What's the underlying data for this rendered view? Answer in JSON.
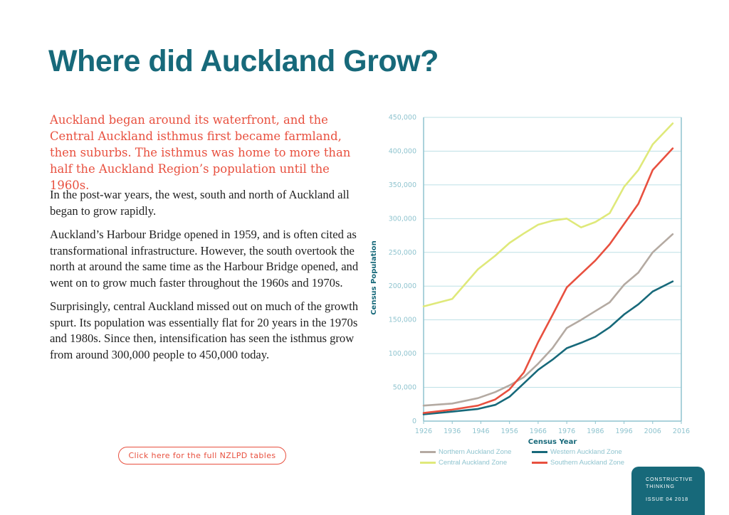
{
  "page": {
    "title": "Where did Auckland Grow?",
    "intro": "Auckland began around its waterfront, and the Central Auckland isthmus first became farmland, then suburbs. The isthmus was home to more than half the Auckland Region’s population until the 1960s.",
    "paragraphs": [
      "In the post-war years, the west, south and north of Auckland all began to grow rapidly.",
      "Auckland’s Harbour Bridge opened in 1959, and is often cited as transformational infrastructure. However, the south overtook the north at around the same time as the Harbour Bridge opened, and went on to grow much faster throughout the 1960s and 1970s.",
      "Surprisingly, central Auckland missed out on much of the growth spurt. Its population was essentially flat for 20 years in the 1970s and 1980s. Since then, intensification has seen the isthmus grow from around 300,000 people to 450,000 today."
    ],
    "cta_label": "Click here for the full NZLPD tables",
    "badge": {
      "line1": "CONSTRUCTIVE",
      "line2": "THINKING",
      "issue": "ISSUE 04 2018"
    }
  },
  "colors": {
    "title": "#17697a",
    "accent": "#e8503f",
    "axis": "#8fc4cf",
    "grid": "#bde0e6"
  },
  "chart_data": {
    "type": "line",
    "xlabel": "Census Year",
    "ylabel": "Census Population",
    "xlim": [
      1926,
      2016
    ],
    "ylim": [
      0,
      450000
    ],
    "xticks": [
      1926,
      1936,
      1946,
      1956,
      1966,
      1976,
      1986,
      1996,
      2006,
      2016
    ],
    "yticks": [
      0,
      50000,
      100000,
      150000,
      200000,
      250000,
      300000,
      350000,
      400000,
      450000
    ],
    "ytick_labels": [
      "0",
      "50,000",
      "100,000",
      "150,000",
      "200,000",
      "250,000",
      "300,000",
      "350,000",
      "400,000",
      "450,000"
    ],
    "grid": true,
    "legend_position": "bottom",
    "series": [
      {
        "name": "Northern Auckland Zone",
        "color": "#b4aaa2",
        "points": [
          [
            1926,
            23000
          ],
          [
            1936,
            26000
          ],
          [
            1945,
            34000
          ],
          [
            1951,
            43000
          ],
          [
            1956,
            53000
          ],
          [
            1961,
            65000
          ],
          [
            1966,
            85000
          ],
          [
            1971,
            108000
          ],
          [
            1976,
            138000
          ],
          [
            1981,
            150000
          ],
          [
            1986,
            163000
          ],
          [
            1991,
            176000
          ],
          [
            1996,
            202000
          ],
          [
            2001,
            220000
          ],
          [
            2006,
            250000
          ],
          [
            2013,
            277000
          ]
        ]
      },
      {
        "name": "Western Auckland Zone",
        "color": "#17697a",
        "points": [
          [
            1926,
            10000
          ],
          [
            1936,
            14000
          ],
          [
            1945,
            18000
          ],
          [
            1951,
            24000
          ],
          [
            1956,
            36000
          ],
          [
            1961,
            56000
          ],
          [
            1966,
            76000
          ],
          [
            1971,
            91000
          ],
          [
            1976,
            108000
          ],
          [
            1981,
            116000
          ],
          [
            1986,
            125000
          ],
          [
            1991,
            139000
          ],
          [
            1996,
            158000
          ],
          [
            2001,
            173000
          ],
          [
            2006,
            192000
          ],
          [
            2013,
            207000
          ]
        ]
      },
      {
        "name": "Central Auckland Zone",
        "color": "#dfe97a",
        "points": [
          [
            1926,
            170000
          ],
          [
            1936,
            181000
          ],
          [
            1945,
            225000
          ],
          [
            1951,
            245000
          ],
          [
            1956,
            264000
          ],
          [
            1961,
            278000
          ],
          [
            1966,
            291000
          ],
          [
            1971,
            297000
          ],
          [
            1976,
            300000
          ],
          [
            1981,
            287000
          ],
          [
            1986,
            295000
          ],
          [
            1991,
            308000
          ],
          [
            1996,
            347000
          ],
          [
            2001,
            372000
          ],
          [
            2006,
            410000
          ],
          [
            2013,
            441000
          ]
        ]
      },
      {
        "name": "Southern Auckland Zone",
        "color": "#e8503f",
        "points": [
          [
            1926,
            12000
          ],
          [
            1936,
            17000
          ],
          [
            1945,
            23000
          ],
          [
            1951,
            32000
          ],
          [
            1956,
            47000
          ],
          [
            1961,
            72000
          ],
          [
            1966,
            117000
          ],
          [
            1971,
            157000
          ],
          [
            1976,
            198000
          ],
          [
            1981,
            218000
          ],
          [
            1986,
            238000
          ],
          [
            1991,
            262000
          ],
          [
            1996,
            292000
          ],
          [
            2001,
            322000
          ],
          [
            2006,
            372000
          ],
          [
            2013,
            404000
          ]
        ]
      }
    ]
  }
}
